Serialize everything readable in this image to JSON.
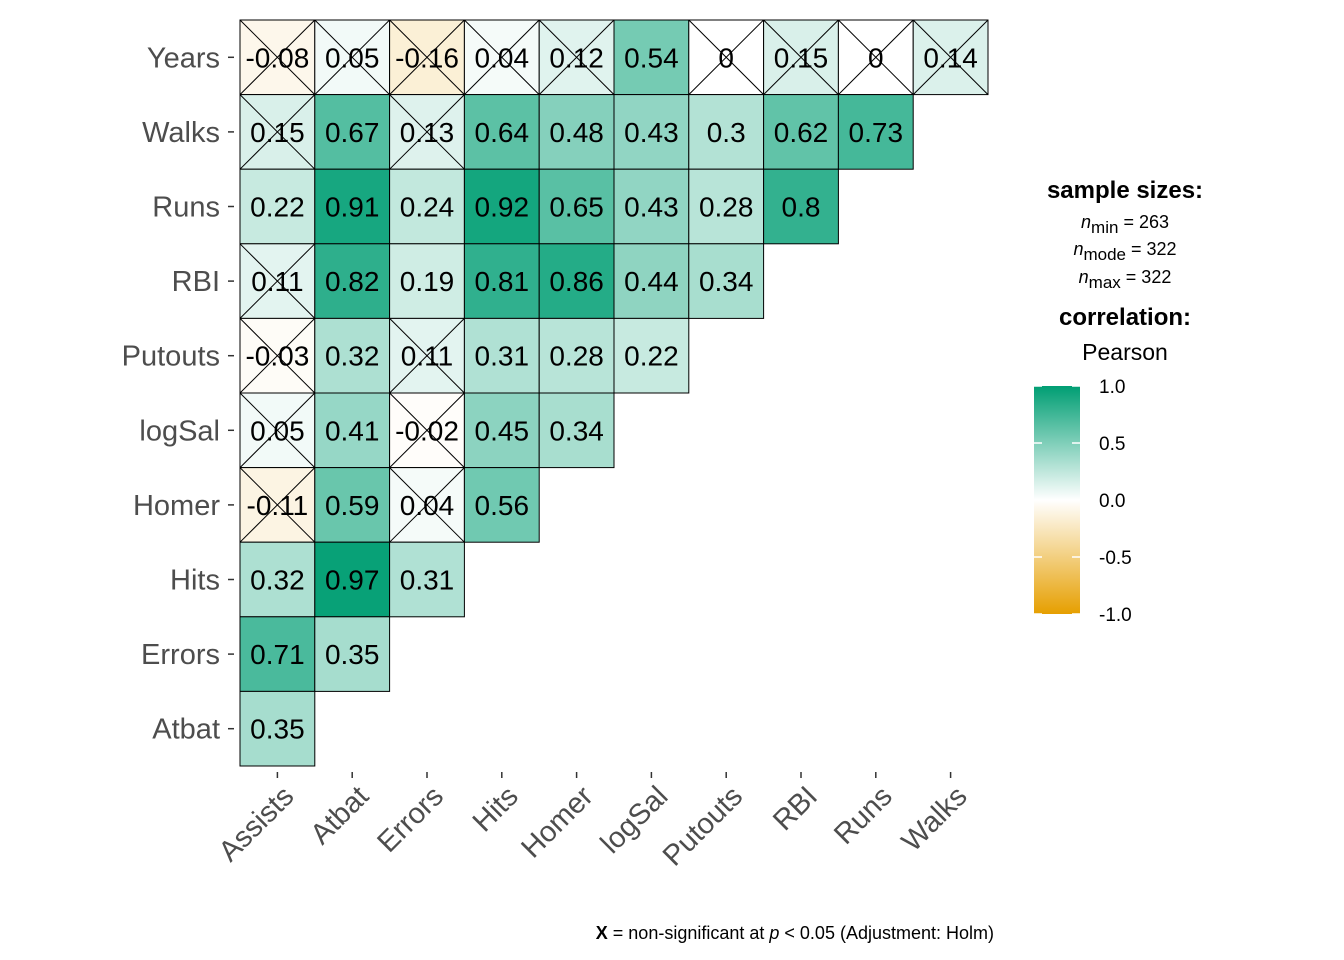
{
  "chart_data": {
    "type": "heatmap",
    "title": "",
    "x_categories": [
      "Assists",
      "Atbat",
      "Errors",
      "Hits",
      "Homer",
      "logSal",
      "Putouts",
      "RBI",
      "Runs",
      "Walks"
    ],
    "y_categories": [
      "Atbat",
      "Errors",
      "Hits",
      "Homer",
      "logSal",
      "Putouts",
      "RBI",
      "Runs",
      "Walks",
      "Years"
    ],
    "cells": [
      {
        "y": "Years",
        "values": [
          -0.08,
          0.05,
          -0.16,
          0.04,
          0.12,
          0.54,
          0,
          0.15,
          0,
          0.14
        ],
        "labels": [
          "-0.08",
          "0.05",
          "-0.16",
          "0.04",
          "0.12",
          "0.54",
          "0",
          "0.15",
          "0",
          "0.14"
        ],
        "nonsig": [
          true,
          true,
          true,
          true,
          true,
          false,
          true,
          true,
          true,
          true
        ]
      },
      {
        "y": "Walks",
        "values": [
          0.15,
          0.67,
          0.13,
          0.64,
          0.48,
          0.43,
          0.3,
          0.62,
          0.73
        ],
        "labels": [
          "0.15",
          "0.67",
          "0.13",
          "0.64",
          "0.48",
          "0.43",
          "0.3",
          "0.62",
          "0.73"
        ],
        "nonsig": [
          true,
          false,
          true,
          false,
          false,
          false,
          false,
          false,
          false
        ]
      },
      {
        "y": "Runs",
        "values": [
          0.22,
          0.91,
          0.24,
          0.92,
          0.65,
          0.43,
          0.28,
          0.8
        ],
        "labels": [
          "0.22",
          "0.91",
          "0.24",
          "0.92",
          "0.65",
          "0.43",
          "0.28",
          "0.8"
        ],
        "nonsig": [
          false,
          false,
          false,
          false,
          false,
          false,
          false,
          false
        ]
      },
      {
        "y": "RBI",
        "values": [
          0.11,
          0.82,
          0.19,
          0.81,
          0.86,
          0.44,
          0.34
        ],
        "labels": [
          "0.11",
          "0.82",
          "0.19",
          "0.81",
          "0.86",
          "0.44",
          "0.34"
        ],
        "nonsig": [
          true,
          false,
          false,
          false,
          false,
          false,
          false
        ]
      },
      {
        "y": "Putouts",
        "values": [
          -0.03,
          0.32,
          0.11,
          0.31,
          0.28,
          0.22
        ],
        "labels": [
          "-0.03",
          "0.32",
          "0.11",
          "0.31",
          "0.28",
          "0.22"
        ],
        "nonsig": [
          true,
          false,
          true,
          false,
          false,
          false
        ]
      },
      {
        "y": "logSal",
        "values": [
          0.05,
          0.41,
          -0.02,
          0.45,
          0.34
        ],
        "labels": [
          "0.05",
          "0.41",
          "-0.02",
          "0.45",
          "0.34"
        ],
        "nonsig": [
          true,
          false,
          true,
          false,
          false
        ]
      },
      {
        "y": "Homer",
        "values": [
          -0.11,
          0.59,
          0.04,
          0.56
        ],
        "labels": [
          "-0.11",
          "0.59",
          "0.04",
          "0.56"
        ],
        "nonsig": [
          true,
          false,
          true,
          false
        ]
      },
      {
        "y": "Hits",
        "values": [
          0.32,
          0.97,
          0.31
        ],
        "labels": [
          "0.32",
          "0.97",
          "0.31"
        ],
        "nonsig": [
          false,
          false,
          false
        ]
      },
      {
        "y": "Errors",
        "values": [
          0.71,
          0.35
        ],
        "labels": [
          "0.71",
          "0.35"
        ],
        "nonsig": [
          false,
          false
        ]
      },
      {
        "y": "Atbat",
        "values": [
          0.35
        ],
        "labels": [
          "0.35"
        ],
        "nonsig": [
          false
        ]
      }
    ],
    "color_scale": {
      "low": "#E69F00",
      "mid": "#FFFFFF",
      "high": "#009E73",
      "limits": [
        -1,
        1
      ]
    },
    "legend": {
      "sample_title": "sample sizes:",
      "n_symbol": "n",
      "n_min_sub": "min",
      "n_min_val": " = 263",
      "n_mode_sub": "mode",
      "n_mode_val": " = 322",
      "n_max_sub": "max",
      "n_max_val": " = 322",
      "corr_title": "correlation:",
      "corr_method": "Pearson",
      "ticks": [
        "1.0",
        "0.5",
        "0.0",
        "-0.5",
        "-1.0"
      ],
      "tick_values": [
        1.0,
        0.5,
        0.0,
        -0.5,
        -1.0
      ],
      "placement": "right"
    },
    "caption": {
      "x_bold": "X",
      "part1": " = non-significant at ",
      "p_italic": "p",
      "part2": " < 0.05 (Adjustment: Holm)"
    }
  }
}
